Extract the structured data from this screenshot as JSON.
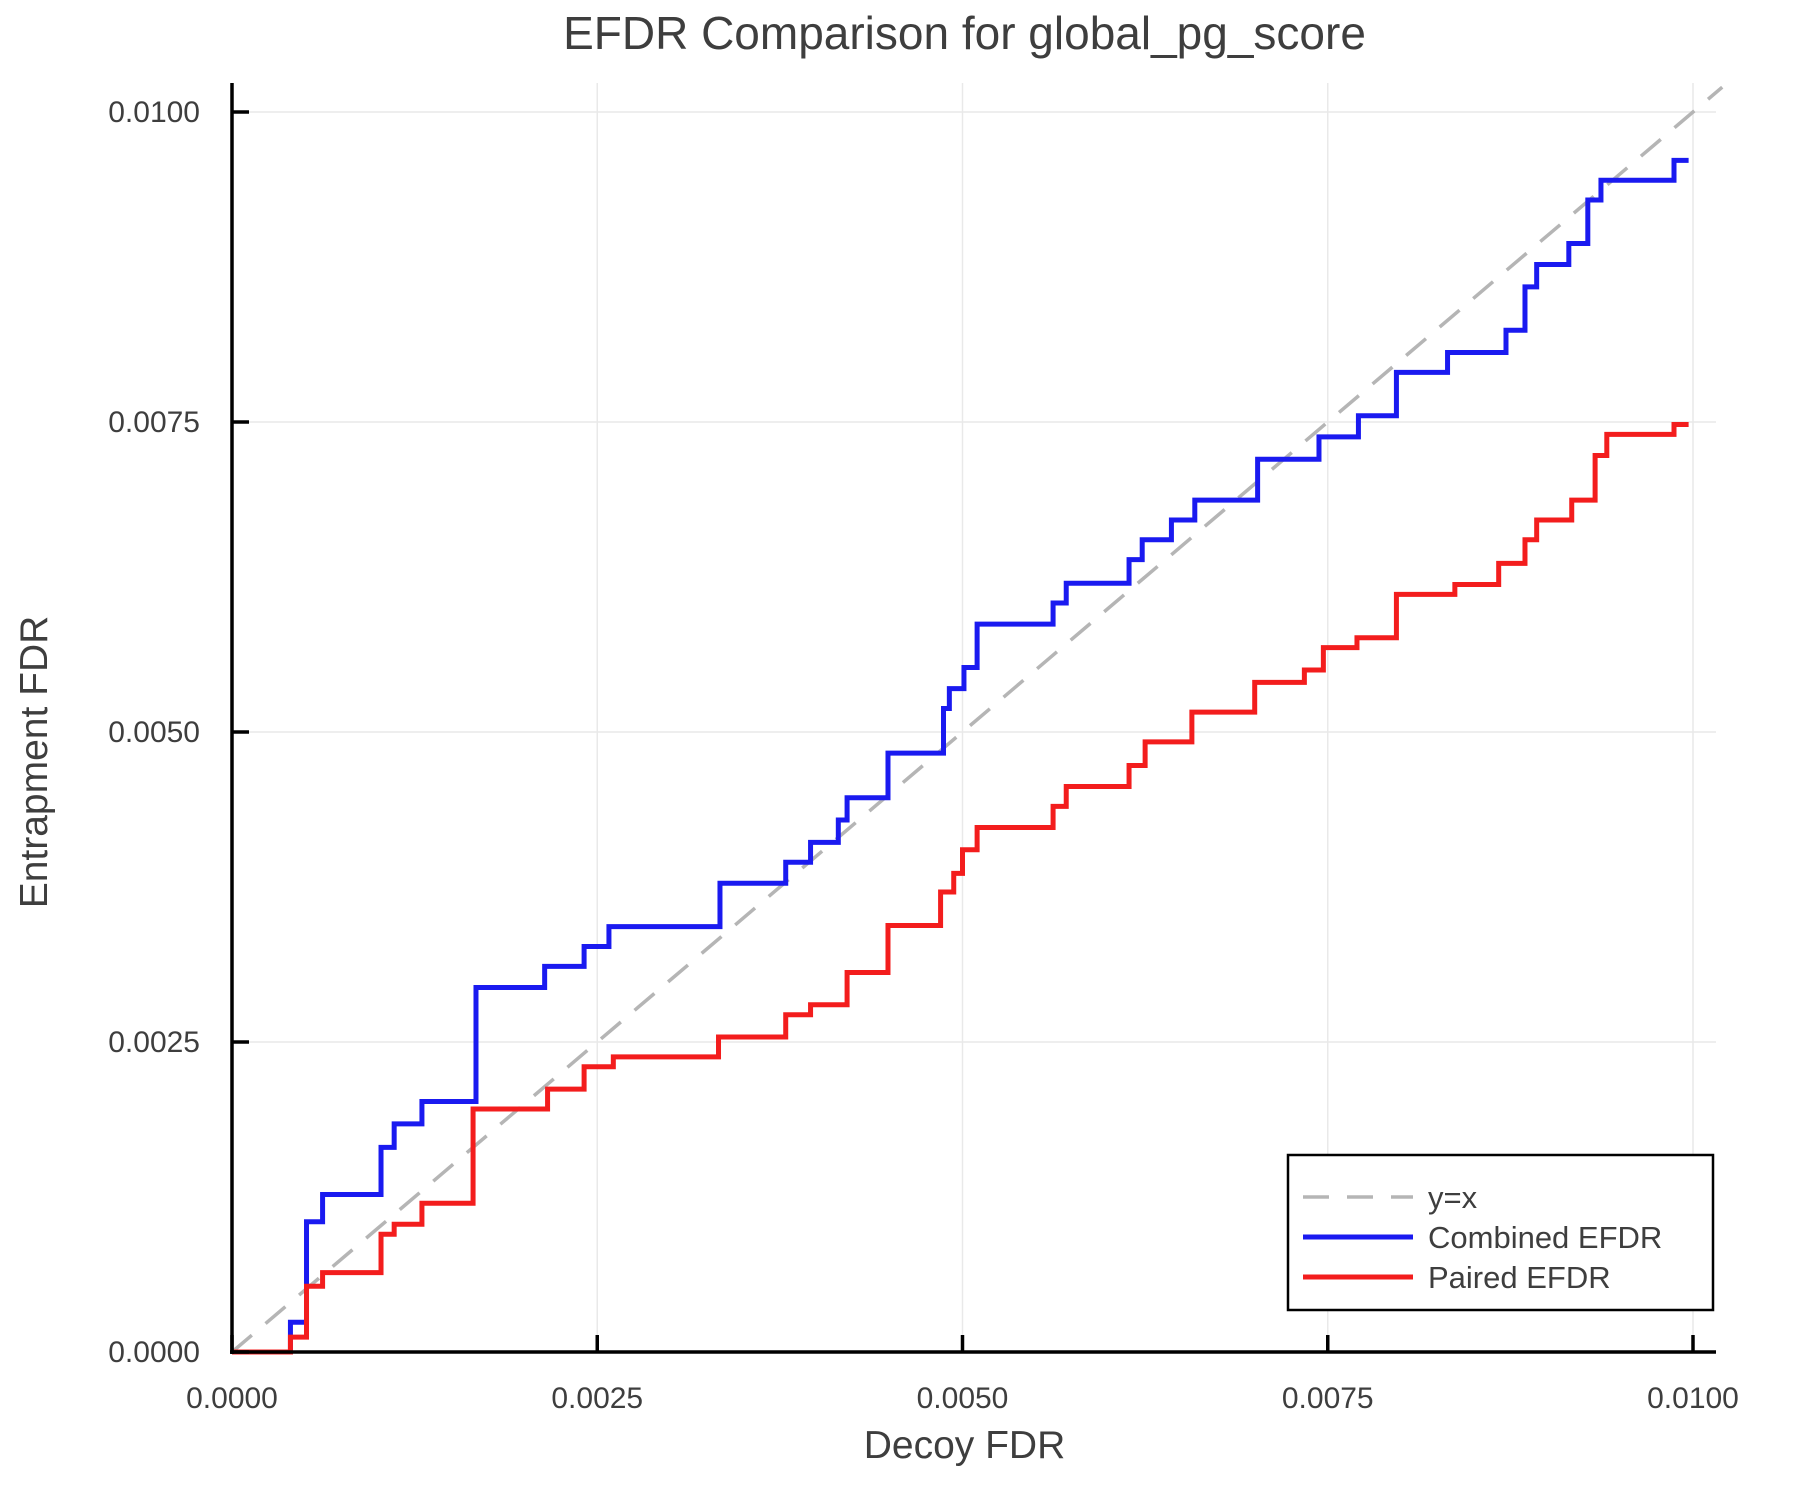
{
  "chart_data": {
    "type": "line",
    "title": "EFDR Comparison for global_pg_score",
    "xlabel": "Decoy FDR",
    "ylabel": "Entrapment FDR",
    "xlim": [
      0,
      0.0102
    ],
    "ylim": [
      0,
      0.0102
    ],
    "grid": true,
    "xticks": [
      0.0,
      0.0025,
      0.005,
      0.0075,
      0.01
    ],
    "xtick_labels": [
      "0.0000",
      "0.0025",
      "0.0050",
      "0.0075",
      "0.0100"
    ],
    "yticks": [
      0.0,
      0.0025,
      0.005,
      0.0075,
      0.01
    ],
    "ytick_labels": [
      "0.0000",
      "0.0025",
      "0.0050",
      "0.0075",
      "0.0100"
    ],
    "style": {
      "grid_color": "#e9e9e9",
      "spine_color": "#000000",
      "text_color": "#3e3e3e",
      "background": "#ffffff"
    },
    "legend": {
      "position": "lower right",
      "entries": [
        "y=x",
        "Combined EFDR",
        "Paired EFDR"
      ]
    },
    "series": [
      {
        "name": "y=x",
        "kind": "line",
        "style": "dashed",
        "color": "#b5b5b5",
        "width": 3.5,
        "points": [
          [
            0.0,
            0.0
          ],
          [
            0.0102,
            0.0102
          ]
        ]
      },
      {
        "name": "Combined EFDR",
        "kind": "step",
        "style": "solid",
        "color": "#1a1af0",
        "width": 5,
        "points": [
          [
            0.0,
            0.0
          ],
          [
            0.0004,
            0.00024
          ],
          [
            0.00051,
            0.00105
          ],
          [
            0.00062,
            0.00127
          ],
          [
            0.00102,
            0.00165
          ],
          [
            0.00111,
            0.00184
          ],
          [
            0.0013,
            0.00202
          ],
          [
            0.00167,
            0.00294
          ],
          [
            0.00214,
            0.00311
          ],
          [
            0.00241,
            0.00327
          ],
          [
            0.00258,
            0.00343
          ],
          [
            0.00334,
            0.00378
          ],
          [
            0.00379,
            0.00395
          ],
          [
            0.00396,
            0.00411
          ],
          [
            0.00415,
            0.00429
          ],
          [
            0.00421,
            0.00447
          ],
          [
            0.00449,
            0.00483
          ],
          [
            0.00487,
            0.00519
          ],
          [
            0.00491,
            0.00535
          ],
          [
            0.00501,
            0.00552
          ],
          [
            0.0051,
            0.00587
          ],
          [
            0.00562,
            0.00604
          ],
          [
            0.00571,
            0.0062
          ],
          [
            0.00614,
            0.00639
          ],
          [
            0.00623,
            0.00655
          ],
          [
            0.00643,
            0.00671
          ],
          [
            0.00659,
            0.00687
          ],
          [
            0.00702,
            0.0072
          ],
          [
            0.00744,
            0.00738
          ],
          [
            0.00771,
            0.00755
          ],
          [
            0.00797,
            0.0079
          ],
          [
            0.00832,
            0.00806
          ],
          [
            0.00872,
            0.00824
          ],
          [
            0.00885,
            0.00859
          ],
          [
            0.00893,
            0.00877
          ],
          [
            0.00915,
            0.00894
          ],
          [
            0.00928,
            0.00929
          ],
          [
            0.00937,
            0.00945
          ],
          [
            0.00987,
            0.00961
          ],
          [
            0.00997,
            0.00961
          ]
        ]
      },
      {
        "name": "Paired EFDR",
        "kind": "step",
        "style": "solid",
        "color": "#f31d1d",
        "width": 5,
        "points": [
          [
            0.0,
            0.0
          ],
          [
            0.0004,
            0.00012
          ],
          [
            0.00051,
            0.00053
          ],
          [
            0.00062,
            0.00064
          ],
          [
            0.00102,
            0.00095
          ],
          [
            0.00111,
            0.00103
          ],
          [
            0.0013,
            0.0012
          ],
          [
            0.00165,
            0.00196
          ],
          [
            0.00216,
            0.00212
          ],
          [
            0.00241,
            0.0023
          ],
          [
            0.00261,
            0.00238
          ],
          [
            0.00333,
            0.00254
          ],
          [
            0.00379,
            0.00272
          ],
          [
            0.00396,
            0.0028
          ],
          [
            0.00421,
            0.00306
          ],
          [
            0.00449,
            0.00344
          ],
          [
            0.00485,
            0.00371
          ],
          [
            0.00494,
            0.00386
          ],
          [
            0.005,
            0.00405
          ],
          [
            0.0051,
            0.00423
          ],
          [
            0.00562,
            0.0044
          ],
          [
            0.00571,
            0.00456
          ],
          [
            0.00614,
            0.00473
          ],
          [
            0.00625,
            0.00492
          ],
          [
            0.00657,
            0.00516
          ],
          [
            0.007,
            0.0054
          ],
          [
            0.00734,
            0.0055
          ],
          [
            0.00747,
            0.00568
          ],
          [
            0.0077,
            0.00576
          ],
          [
            0.00797,
            0.00611
          ],
          [
            0.00837,
            0.00619
          ],
          [
            0.00867,
            0.00636
          ],
          [
            0.00885,
            0.00655
          ],
          [
            0.00893,
            0.00671
          ],
          [
            0.00917,
            0.00687
          ],
          [
            0.00933,
            0.00723
          ],
          [
            0.00941,
            0.0074
          ],
          [
            0.00987,
            0.00748
          ],
          [
            0.00997,
            0.00748
          ]
        ]
      }
    ]
  }
}
